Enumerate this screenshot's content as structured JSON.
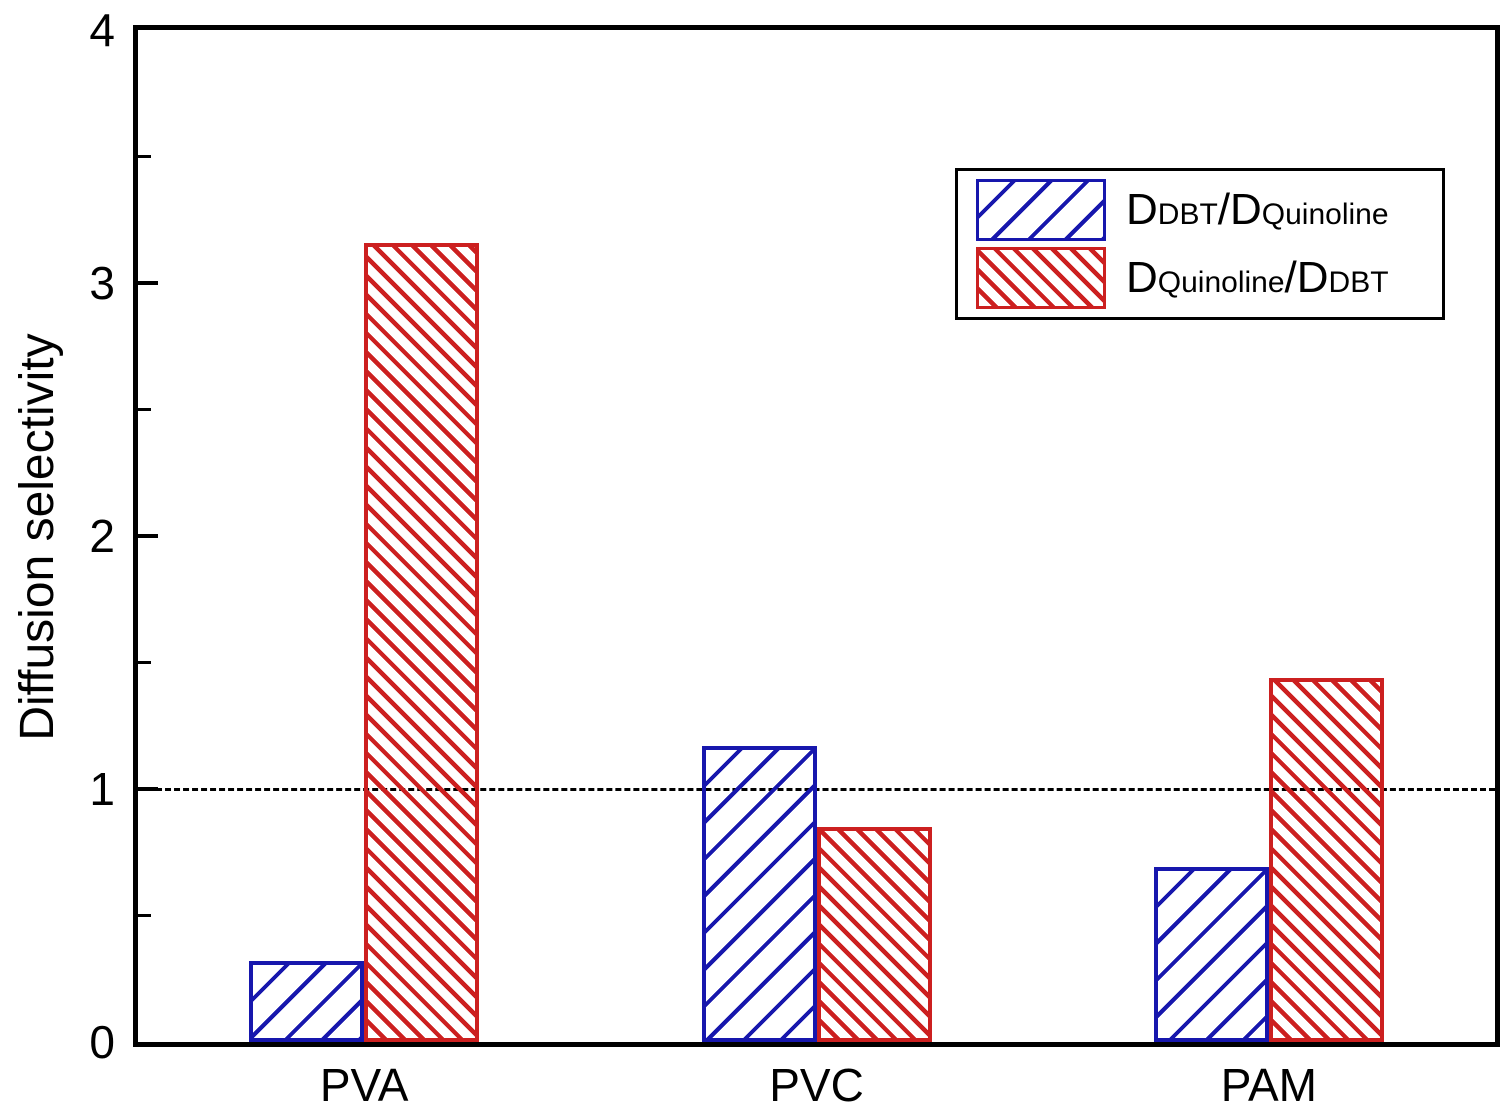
{
  "chart_data": {
    "type": "bar",
    "title": "",
    "categories": [
      "PVA",
      "PVC",
      "PAM"
    ],
    "series": [
      {
        "name": "DDBT/DQuinoline",
        "label_parts": [
          {
            "text": "D",
            "sub": false
          },
          {
            "text": "DBT",
            "sub": true
          },
          {
            "text": "/D",
            "sub": false
          },
          {
            "text": "Quinoline",
            "sub": true
          }
        ],
        "color": "#1717ad",
        "hatch": "/",
        "values": [
          0.32,
          1.17,
          0.69
        ]
      },
      {
        "name": "DQuinoline/DDBT",
        "label_parts": [
          {
            "text": "D",
            "sub": false
          },
          {
            "text": "Quinoline",
            "sub": true
          },
          {
            "text": "/D",
            "sub": false
          },
          {
            "text": "DBT",
            "sub": true
          }
        ],
        "color": "#cc2020",
        "hatch": "\\",
        "values": [
          3.16,
          0.85,
          1.44
        ]
      }
    ],
    "xlabel": "",
    "ylabel": "Diffusion selectivity",
    "ylim": [
      0,
      4
    ],
    "ytick_labels": [
      "0",
      "1",
      "2",
      "3",
      "4"
    ],
    "ytick_values": [
      0,
      1,
      2,
      3,
      4
    ],
    "minor_tick_values": [
      0.5,
      1.5,
      2.5,
      3.5
    ],
    "reference_line_y": 1,
    "legend_position": "top-right",
    "grid": "off",
    "axis_color": "#000000",
    "background_color": "#ffffff"
  }
}
